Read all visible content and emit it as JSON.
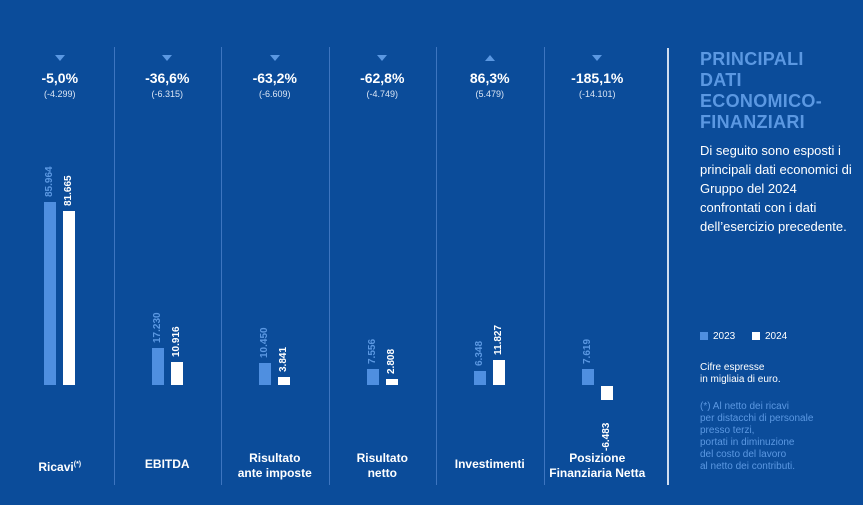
{
  "chart_data": {
    "type": "bar",
    "series": [
      {
        "name": "2023",
        "color": "#4f8fe0"
      },
      {
        "name": "2024",
        "color": "#ffffff"
      }
    ],
    "categories": [
      {
        "label": "Ricavi",
        "label_suffix": "(*)",
        "label_lines": [
          "Ricavi"
        ],
        "prev": 85964,
        "cur": 81665,
        "prev_text": "85.964",
        "cur_text": "81.665",
        "pct": "-5,0%",
        "delta": "(-4.299)",
        "trend": "down"
      },
      {
        "label": "EBITDA",
        "label_suffix": "",
        "label_lines": [
          "EBITDA"
        ],
        "prev": 17230,
        "cur": 10916,
        "prev_text": "17.230",
        "cur_text": "10.916",
        "pct": "-36,6%",
        "delta": "(-6.315)",
        "trend": "down"
      },
      {
        "label": "Risultato ante imposte",
        "label_suffix": "",
        "label_lines": [
          "Risultato",
          "ante imposte"
        ],
        "prev": 10450,
        "cur": 3841,
        "prev_text": "10.450",
        "cur_text": "3.841",
        "pct": "-63,2%",
        "delta": "(-6.609)",
        "trend": "down"
      },
      {
        "label": "Risultato netto",
        "label_suffix": "",
        "label_lines": [
          "Risultato",
          "netto"
        ],
        "prev": 7556,
        "cur": 2808,
        "prev_text": "7.556",
        "cur_text": "2.808",
        "pct": "-62,8%",
        "delta": "(-4.749)",
        "trend": "down"
      },
      {
        "label": "Investimenti",
        "label_suffix": "",
        "label_lines": [
          "Investimenti"
        ],
        "prev": 6348,
        "cur": 11827,
        "prev_text": "6.348",
        "cur_text": "11.827",
        "pct": "86,3%",
        "delta": "(5.479)",
        "trend": "up"
      },
      {
        "label": "Posizione Finanziaria Netta",
        "label_suffix": "",
        "label_lines": [
          "Posizione",
          "Finanziaria Netta"
        ],
        "prev": 7619,
        "cur": -6483,
        "prev_text": "7.619",
        "cur_text": "-6.483",
        "pct": "-185,1%",
        "delta": "(-14.101)",
        "trend": "down"
      }
    ]
  },
  "side": {
    "title_lines": [
      "PRINCIPALI",
      "DATI",
      "ECONOMICO-",
      "FINANZIARI"
    ],
    "description": "Di seguito sono esposti i principali dati economici di Gruppo del 2024 confrontati con i dati dell’esercizio precedente.",
    "legend_2023": "2023",
    "legend_2024": "2024",
    "units_lines": [
      "Cifre espresse",
      "in migliaia di euro."
    ],
    "footnote_lines": [
      "(*) Al netto dei ricavi",
      "per distacchi di personale",
      "presso terzi,",
      "portati in diminuzione",
      "del costo del lavoro",
      "al netto dei contributi."
    ]
  }
}
